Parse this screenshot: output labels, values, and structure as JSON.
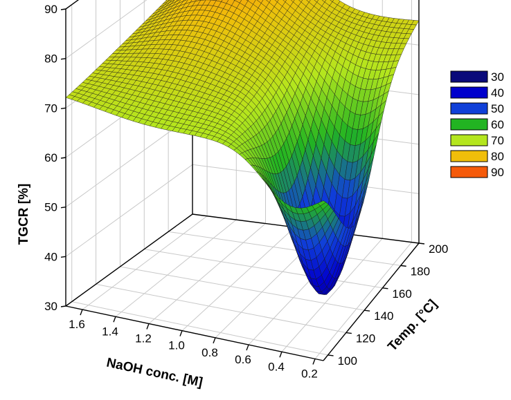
{
  "chart_data": {
    "type": "surface3d",
    "title": "",
    "xlabel": "NaOH conc. [M]",
    "ylabel": "Temp. [°C]",
    "zlabel": "TGCR [%]",
    "x_ticks": [
      "1.6",
      "1.4",
      "1.2",
      "1.0",
      "0.8",
      "0.6",
      "0.4",
      "0.2"
    ],
    "y_ticks": [
      "100",
      "120",
      "140",
      "160",
      "180",
      "200"
    ],
    "z_ticks": [
      "30",
      "40",
      "50",
      "60",
      "70",
      "80",
      "90"
    ],
    "xlim": [
      1.7,
      0.15
    ],
    "ylim": [
      95,
      200
    ],
    "zlim": [
      30,
      90
    ],
    "grid": true,
    "legend_position": "right",
    "legend": [
      {
        "label": "30",
        "color": "#0a0a7a"
      },
      {
        "label": "40",
        "color": "#0000cc"
      },
      {
        "label": "50",
        "color": "#1040d8"
      },
      {
        "label": "60",
        "color": "#22b422"
      },
      {
        "label": "70",
        "color": "#b4e61e"
      },
      {
        "label": "80",
        "color": "#f0be0a"
      },
      {
        "label": "90",
        "color": "#f55a0a"
      }
    ],
    "corner_values": [
      {
        "naoh": 1.7,
        "temp": 95,
        "tgcr": 73
      },
      {
        "naoh": 1.7,
        "temp": 200,
        "tgcr": 73
      },
      {
        "naoh": 1.25,
        "temp": 200,
        "tgcr": 88
      },
      {
        "naoh": 0.15,
        "temp": 200,
        "tgcr": 72
      },
      {
        "naoh": 0.4,
        "temp": 130,
        "tgcr": 35
      },
      {
        "naoh": 0.15,
        "temp": 95,
        "tgcr": 46
      }
    ]
  }
}
